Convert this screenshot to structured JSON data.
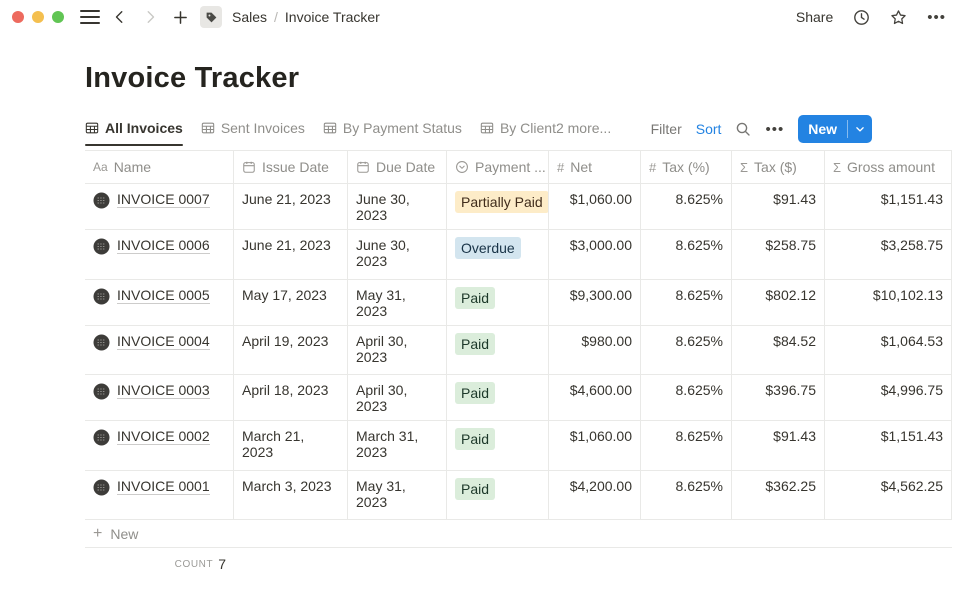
{
  "window": {
    "breadcrumb": {
      "section": "Sales",
      "separator": "/",
      "page": "Invoice Tracker"
    },
    "share_label": "Share"
  },
  "page": {
    "title": "Invoice Tracker"
  },
  "toolbar": {
    "tabs": [
      {
        "label": "All Invoices",
        "active": true
      },
      {
        "label": "Sent Invoices",
        "active": false
      },
      {
        "label": "By Payment Status",
        "active": false
      },
      {
        "label": "By Client",
        "active": false
      }
    ],
    "more_tabs": "2 more...",
    "filter_label": "Filter",
    "sort_label": "Sort",
    "new_label": "New"
  },
  "table": {
    "columns": [
      {
        "icon": "text-icon",
        "label": "Name",
        "align": "left"
      },
      {
        "icon": "calendar-icon",
        "label": "Issue Date",
        "align": "left"
      },
      {
        "icon": "calendar-icon",
        "label": "Due Date",
        "align": "left"
      },
      {
        "icon": "select-icon",
        "label": "Payment ...",
        "align": "left"
      },
      {
        "icon": "number-icon",
        "label": "Net",
        "align": "right"
      },
      {
        "icon": "number-icon",
        "label": "Tax (%)",
        "align": "right"
      },
      {
        "icon": "formula-icon",
        "label": "Tax ($)",
        "align": "right"
      },
      {
        "icon": "formula-icon",
        "label": "Gross amount",
        "align": "right"
      }
    ],
    "rows": [
      {
        "name": "INVOICE 0007",
        "issue_date": "June 21, 2023",
        "due_date": "June 30, 2023",
        "status": "Partially Paid",
        "status_color": "yellow",
        "net": "$1,060.00",
        "tax_pct": "8.625%",
        "tax_usd": "$91.43",
        "gross": "$1,151.43"
      },
      {
        "name": "INVOICE 0006",
        "issue_date": "June 21, 2023",
        "due_date": "June 30, 2023",
        "status": "Overdue",
        "status_color": "blue",
        "net": "$3,000.00",
        "tax_pct": "8.625%",
        "tax_usd": "$258.75",
        "gross": "$3,258.75"
      },
      {
        "name": "INVOICE 0005",
        "issue_date": "May 17, 2023",
        "due_date": "May 31, 2023",
        "status": "Paid",
        "status_color": "green",
        "net": "$9,300.00",
        "tax_pct": "8.625%",
        "tax_usd": "$802.12",
        "gross": "$10,102.13"
      },
      {
        "name": "INVOICE 0004",
        "issue_date": "April 19, 2023",
        "due_date": "April 30, 2023",
        "status": "Paid",
        "status_color": "green",
        "net": "$980.00",
        "tax_pct": "8.625%",
        "tax_usd": "$84.52",
        "gross": "$1,064.53"
      },
      {
        "name": "INVOICE 0003",
        "issue_date": "April 18, 2023",
        "due_date": "April 30, 2023",
        "status": "Paid",
        "status_color": "green",
        "net": "$4,600.00",
        "tax_pct": "8.625%",
        "tax_usd": "$396.75",
        "gross": "$4,996.75"
      },
      {
        "name": "INVOICE 0002",
        "issue_date": "March 21, 2023",
        "due_date": "March 31, 2023",
        "status": "Paid",
        "status_color": "green",
        "net": "$1,060.00",
        "tax_pct": "8.625%",
        "tax_usd": "$91.43",
        "gross": "$1,151.43"
      },
      {
        "name": "INVOICE 0001",
        "issue_date": "March 3, 2023",
        "due_date": "May 31, 2023",
        "status": "Paid",
        "status_color": "green",
        "net": "$4,200.00",
        "tax_pct": "8.625%",
        "tax_usd": "$362.25",
        "gross": "$4,562.25"
      }
    ],
    "new_row_label": "New",
    "footer": {
      "count_label": "COUNT",
      "count_value": "7"
    }
  },
  "colors": {
    "accent_blue": "#2383e2",
    "badge_yellow_bg": "#fdecc8",
    "badge_blue_bg": "#d3e5ef",
    "badge_green_bg": "#dbeddb",
    "border": "#e9e9e7"
  }
}
